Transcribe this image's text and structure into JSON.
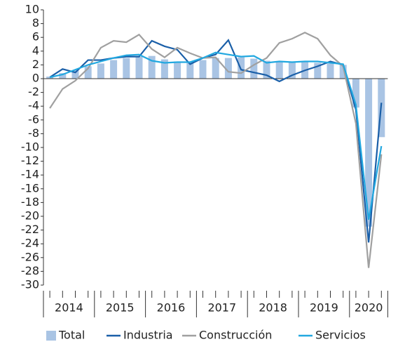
{
  "chart_data": {
    "type": "bar_line",
    "categories": [
      null,
      null,
      null,
      null,
      null,
      null,
      null,
      null,
      null,
      null,
      null,
      null,
      null,
      null,
      null,
      null,
      null,
      null,
      null,
      null,
      null,
      null,
      null,
      null,
      null,
      null,
      null
    ],
    "x_groups": [
      "2014",
      "2015",
      "2016",
      "2017",
      "2018",
      "2019",
      "2020"
    ],
    "series": [
      {
        "name": "Total",
        "type": "bar",
        "color": "#a9c4e4",
        "values": [
          0.3,
          0.8,
          1.2,
          1.8,
          2.2,
          2.7,
          3.0,
          3.2,
          3.3,
          2.8,
          2.5,
          2.4,
          2.7,
          3.0,
          3.0,
          3.1,
          2.9,
          2.6,
          2.4,
          2.4,
          2.4,
          2.3,
          2.2,
          2.0,
          -4.2,
          -21.5,
          -8.5
        ]
      },
      {
        "name": "Industria",
        "type": "line",
        "color": "#1a5fa8",
        "values": [
          0.2,
          1.4,
          0.9,
          2.7,
          2.7,
          3.0,
          3.2,
          3.2,
          5.5,
          4.7,
          4.2,
          2.1,
          3.0,
          3.5,
          5.6,
          1.3,
          0.9,
          0.5,
          -0.4,
          0.5,
          1.2,
          1.8,
          2.5,
          2.0,
          -4.5,
          -23.8,
          -3.5
        ]
      },
      {
        "name": "Construcción",
        "type": "line",
        "color": "#a0a0a0",
        "values": [
          -4.3,
          -1.5,
          -0.3,
          1.5,
          4.5,
          5.5,
          5.3,
          6.4,
          4.3,
          3.1,
          4.5,
          3.7,
          3.0,
          3.1,
          1.0,
          0.8,
          2.0,
          3.0,
          5.2,
          5.8,
          6.7,
          5.8,
          3.4,
          1.8,
          -6.5,
          -27.5,
          -11.0
        ]
      },
      {
        "name": "Servicios",
        "type": "line",
        "color": "#22a8e0",
        "values": [
          0.2,
          0.6,
          1.3,
          2.0,
          2.5,
          3.0,
          3.4,
          3.5,
          2.6,
          2.3,
          2.4,
          2.4,
          3.0,
          3.8,
          3.5,
          3.2,
          3.3,
          2.3,
          2.5,
          2.4,
          2.5,
          2.5,
          2.3,
          2.1,
          -3.8,
          -20.5,
          -9.8
        ]
      }
    ],
    "ylim": [
      -30,
      10
    ],
    "yticks": [
      -30,
      -28,
      -26,
      -24,
      -22,
      -20,
      -18,
      -16,
      -14,
      -12,
      -10,
      -8,
      -6,
      -4,
      -2,
      0,
      2,
      4,
      6,
      8,
      10
    ],
    "grid": false
  }
}
